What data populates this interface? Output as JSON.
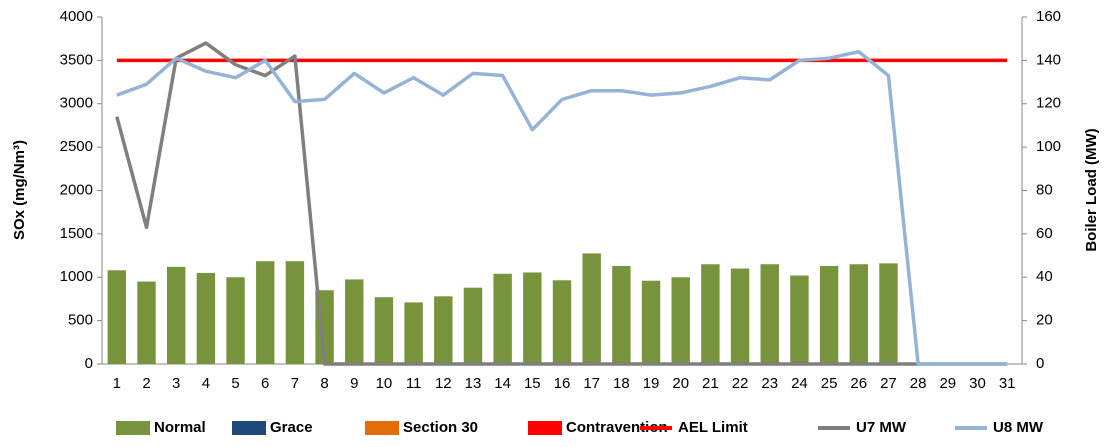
{
  "chart_data": {
    "type": "bar",
    "categories": [
      "1",
      "2",
      "3",
      "4",
      "5",
      "6",
      "7",
      "8",
      "9",
      "10",
      "11",
      "12",
      "13",
      "14",
      "15",
      "16",
      "17",
      "18",
      "19",
      "20",
      "21",
      "22",
      "23",
      "24",
      "25",
      "26",
      "27",
      "28",
      "29",
      "30",
      "31"
    ],
    "ylabel": "SOx (mg/Nm³)",
    "y2label": "Boiler Load (MW)",
    "ylim": [
      0,
      4000
    ],
    "yticks": [
      0,
      500,
      1000,
      1500,
      2000,
      2500,
      3000,
      3500,
      4000
    ],
    "y2lim": [
      0,
      160
    ],
    "y2ticks": [
      0,
      20,
      40,
      60,
      80,
      100,
      120,
      140,
      160
    ],
    "grid": false,
    "series": [
      {
        "name": "Normal",
        "type": "bar",
        "color": "#77933c",
        "values": [
          1080,
          950,
          1120,
          1050,
          1000,
          1185,
          1185,
          850,
          975,
          770,
          710,
          780,
          880,
          1040,
          1055,
          965,
          1275,
          1130,
          960,
          1000,
          1150,
          1100,
          1150,
          1020,
          1130,
          1150,
          1160,
          null,
          null,
          null,
          null
        ]
      },
      {
        "name": "Grace",
        "type": "bar",
        "color": "#1f497d",
        "values": [
          0,
          0,
          0,
          0,
          0,
          0,
          0,
          0,
          0,
          0,
          0,
          0,
          0,
          0,
          0,
          0,
          0,
          0,
          0,
          0,
          0,
          0,
          0,
          0,
          0,
          0,
          0,
          null,
          null,
          null,
          null
        ]
      },
      {
        "name": "Section 30",
        "type": "bar",
        "color": "#e46c0a",
        "values": [
          0,
          0,
          0,
          0,
          0,
          0,
          0,
          0,
          0,
          0,
          0,
          0,
          0,
          0,
          0,
          0,
          0,
          0,
          0,
          0,
          0,
          0,
          0,
          0,
          0,
          0,
          0,
          null,
          null,
          null,
          null
        ]
      },
      {
        "name": "Contravention",
        "type": "bar",
        "color": "#ff0000",
        "values": [
          0,
          0,
          0,
          0,
          0,
          0,
          0,
          0,
          0,
          0,
          0,
          0,
          0,
          0,
          0,
          0,
          0,
          0,
          0,
          0,
          0,
          0,
          0,
          0,
          0,
          0,
          0,
          null,
          null,
          null,
          null
        ]
      },
      {
        "name": "AEL Limit",
        "type": "line",
        "color": "#ff0000",
        "values": [
          3500,
          3500,
          3500,
          3500,
          3500,
          3500,
          3500,
          3500,
          3500,
          3500,
          3500,
          3500,
          3500,
          3500,
          3500,
          3500,
          3500,
          3500,
          3500,
          3500,
          3500,
          3500,
          3500,
          3500,
          3500,
          3500,
          3500,
          3500,
          3500,
          3500,
          3500
        ]
      },
      {
        "name": "U7 MW",
        "type": "line",
        "axis": "y2",
        "color": "#7f7f7f",
        "values": [
          114,
          63,
          141,
          148,
          138,
          133,
          142,
          0,
          0,
          0,
          0,
          0,
          0,
          0,
          0,
          0,
          0,
          0,
          0,
          0,
          0,
          0,
          0,
          0,
          0,
          0,
          0,
          0,
          0,
          0,
          0
        ]
      },
      {
        "name": "U8 MW",
        "type": "line",
        "axis": "y2",
        "color": "#95b3d7",
        "values": [
          124,
          129,
          141,
          135,
          132,
          140,
          121,
          122,
          134,
          125,
          132,
          124,
          134,
          133,
          108,
          122,
          126,
          126,
          124,
          125,
          128,
          132,
          131,
          140,
          141,
          144,
          133,
          0,
          0,
          0,
          0
        ]
      }
    ]
  }
}
